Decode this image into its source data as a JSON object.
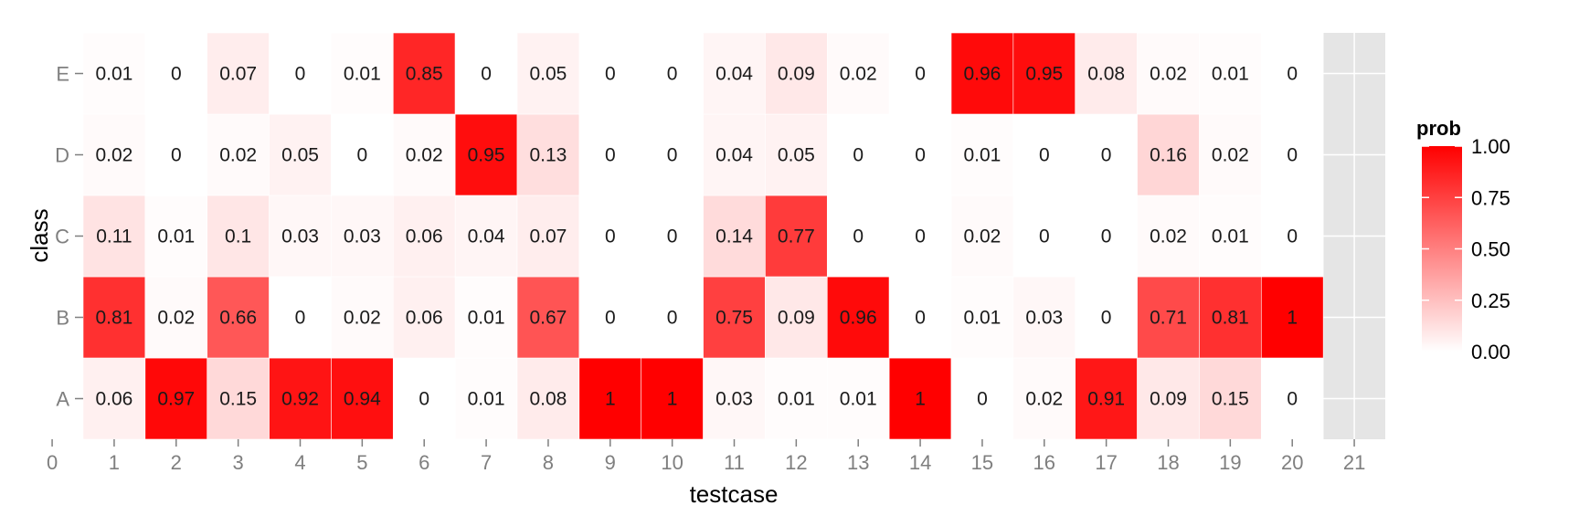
{
  "chart_data": {
    "type": "heatmap",
    "xlabel": "testcase",
    "ylabel": "class",
    "x_ticks": [
      "0",
      "1",
      "2",
      "3",
      "4",
      "5",
      "6",
      "7",
      "8",
      "9",
      "10",
      "11",
      "12",
      "13",
      "14",
      "15",
      "16",
      "17",
      "18",
      "19",
      "20",
      "21"
    ],
    "xlim": [
      0.5,
      21.5
    ],
    "y_categories": [
      "A",
      "B",
      "C",
      "D",
      "E"
    ],
    "x": [
      1,
      2,
      3,
      4,
      5,
      6,
      7,
      8,
      9,
      10,
      11,
      12,
      13,
      14,
      15,
      16,
      17,
      18,
      19,
      20
    ],
    "values": {
      "A": [
        "0.06",
        "0.97",
        "0.15",
        "0.92",
        "0.94",
        "0",
        "0.01",
        "0.08",
        "1",
        "1",
        "0.03",
        "0.01",
        "0.01",
        "1",
        "0",
        "0.02",
        "0.91",
        "0.09",
        "0.15",
        "0"
      ],
      "B": [
        "0.81",
        "0.02",
        "0.66",
        "0",
        "0.02",
        "0.06",
        "0.01",
        "0.67",
        "0",
        "0",
        "0.75",
        "0.09",
        "0.96",
        "0",
        "0.01",
        "0.03",
        "0",
        "0.71",
        "0.81",
        "1"
      ],
      "C": [
        "0.11",
        "0.01",
        "0.1",
        "0.03",
        "0.03",
        "0.06",
        "0.04",
        "0.07",
        "0",
        "0",
        "0.14",
        "0.77",
        "0",
        "0",
        "0.02",
        "0",
        "0",
        "0.02",
        "0.01",
        "0"
      ],
      "D": [
        "0.02",
        "0",
        "0.02",
        "0.05",
        "0",
        "0.02",
        "0.95",
        "0.13",
        "0",
        "0",
        "0.04",
        "0.05",
        "0",
        "0",
        "0.01",
        "0",
        "0",
        "0.16",
        "0.02",
        "0"
      ],
      "E": [
        "0.01",
        "0",
        "0.07",
        "0",
        "0.01",
        "0.85",
        "0",
        "0.05",
        "0",
        "0",
        "0.04",
        "0.09",
        "0.02",
        "0",
        "0.96",
        "0.95",
        "0.08",
        "0.02",
        "0.01",
        "0"
      ]
    },
    "legend": {
      "title": "prob",
      "ticks": [
        "1.00",
        "0.75",
        "0.50",
        "0.25",
        "0.00"
      ],
      "range": [
        0,
        1
      ],
      "low_color": "#ffffff",
      "high_color": "#ff0000",
      "placement": "right"
    },
    "panel_background": "#e5e5e5",
    "grid_color": "#ffffff",
    "grid": true
  }
}
